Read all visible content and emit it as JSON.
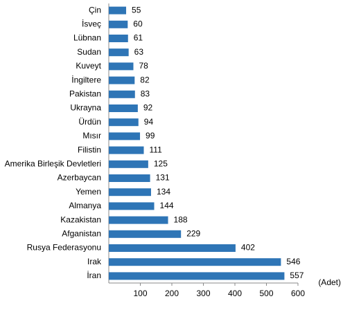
{
  "chart_data": {
    "type": "bar",
    "orientation": "horizontal",
    "categories": [
      "Çin",
      "İsveç",
      "Lübnan",
      "Sudan",
      "Kuveyt",
      "İngiltere",
      "Pakistan",
      "Ukrayna",
      "Ürdün",
      "Mısır",
      "Filistin",
      "Amerika Birleşik Devletleri",
      "Azerbaycan",
      "Yemen",
      "Almanya",
      "Kazakistan",
      "Afganistan",
      "Rusya Federasyonu",
      "Irak",
      "İran"
    ],
    "values": [
      55,
      60,
      61,
      63,
      78,
      82,
      83,
      92,
      94,
      99,
      111,
      125,
      131,
      134,
      144,
      188,
      229,
      402,
      546,
      557
    ],
    "color": "#2e75b6",
    "xlim": [
      0,
      600
    ],
    "xticks": [
      100,
      200,
      300,
      400,
      500,
      600
    ],
    "x_label": "(Adet)",
    "grid": false
  }
}
